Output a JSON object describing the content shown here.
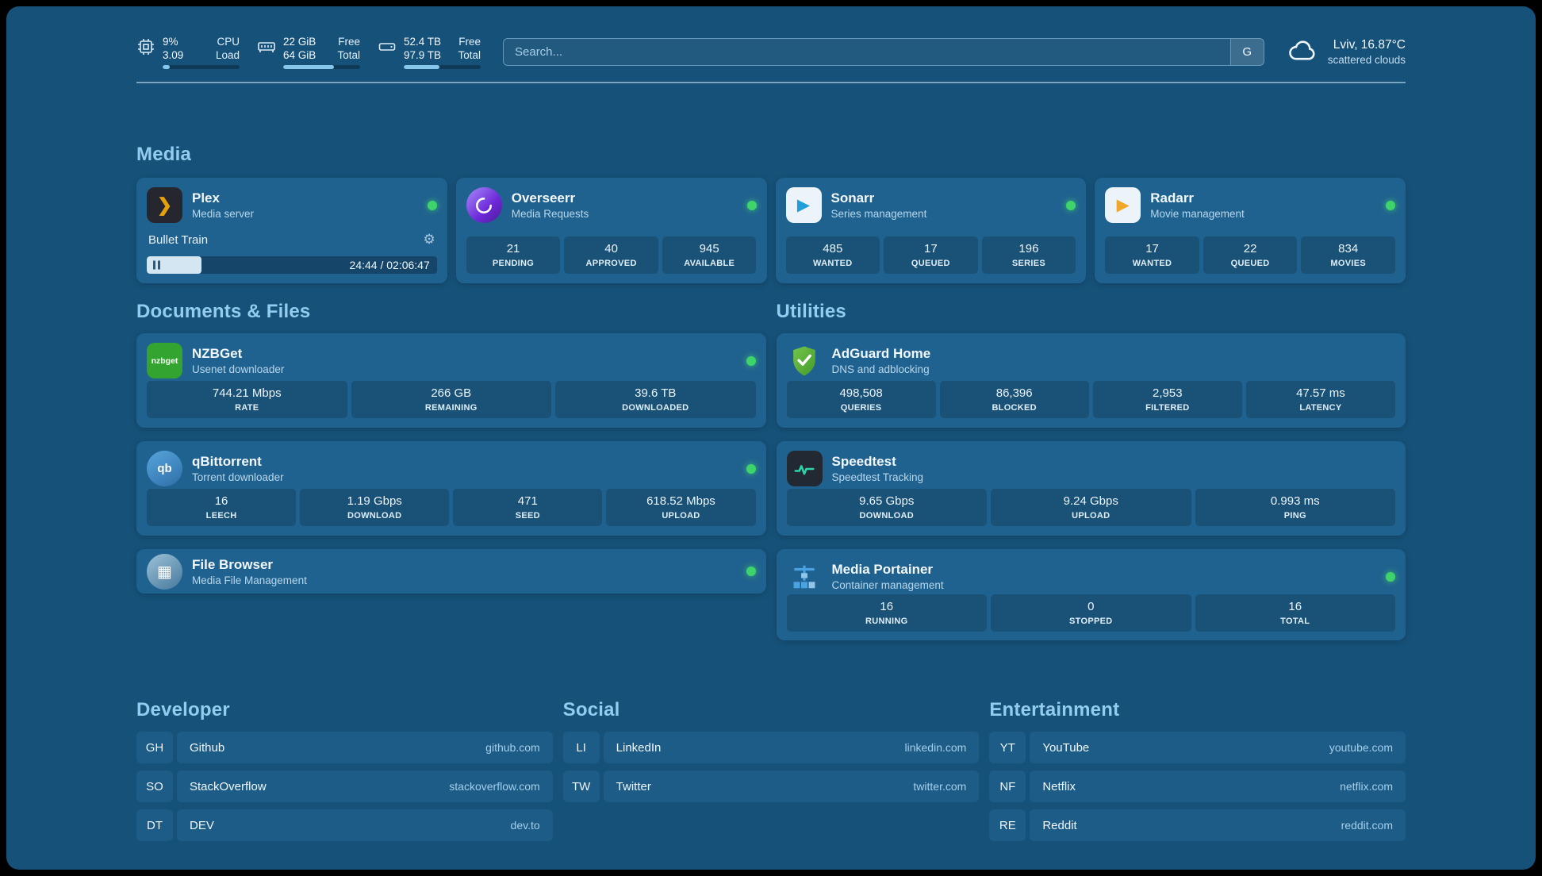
{
  "topbar": {
    "cpu": {
      "value": "9%",
      "sub": "3.09",
      "label_top": "CPU",
      "label_bottom": "Load",
      "progress": 9
    },
    "memory": {
      "value": "22 GiB",
      "sub": "64 GiB",
      "label_top": "Free",
      "label_bottom": "Total",
      "progress": 66
    },
    "disk": {
      "value": "52.4 TB",
      "sub": "97.9 TB",
      "label_top": "Free",
      "label_bottom": "Total",
      "progress": 46
    },
    "search": {
      "placeholder": "Search...",
      "engine_button": "G"
    },
    "weather": {
      "location": "Lviv, 16.87°C",
      "condition": "scattered clouds"
    }
  },
  "media": {
    "title": "Media",
    "plex": {
      "name": "Plex",
      "desc": "Media server",
      "now_playing": "Bullet Train",
      "time": "24:44 / 02:06:47",
      "progress": 19
    },
    "cards": [
      {
        "name": "Overseerr",
        "desc": "Media Requests",
        "stats": [
          {
            "value": "21",
            "label": "PENDING"
          },
          {
            "value": "40",
            "label": "APPROVED"
          },
          {
            "value": "945",
            "label": "AVAILABLE"
          }
        ]
      },
      {
        "name": "Sonarr",
        "desc": "Series management",
        "stats": [
          {
            "value": "485",
            "label": "WANTED"
          },
          {
            "value": "17",
            "label": "QUEUED"
          },
          {
            "value": "196",
            "label": "SERIES"
          }
        ]
      },
      {
        "name": "Radarr",
        "desc": "Movie management",
        "stats": [
          {
            "value": "17",
            "label": "WANTED"
          },
          {
            "value": "22",
            "label": "QUEUED"
          },
          {
            "value": "834",
            "label": "MOVIES"
          }
        ]
      }
    ]
  },
  "documents": {
    "title": "Documents & Files",
    "cards": [
      {
        "name": "NZBGet",
        "desc": "Usenet downloader",
        "icon_text": "nzbget",
        "stats": [
          {
            "value": "744.21 Mbps",
            "label": "RATE"
          },
          {
            "value": "266 GB",
            "label": "REMAINING"
          },
          {
            "value": "39.6 TB",
            "label": "DOWNLOADED"
          }
        ]
      },
      {
        "name": "qBittorrent",
        "desc": "Torrent downloader",
        "icon_text": "qb",
        "stats": [
          {
            "value": "16",
            "label": "LEECH"
          },
          {
            "value": "1.19 Gbps",
            "label": "DOWNLOAD"
          },
          {
            "value": "471",
            "label": "SEED"
          },
          {
            "value": "618.52 Mbps",
            "label": "UPLOAD"
          }
        ]
      },
      {
        "name": "File Browser",
        "desc": "Media File Management",
        "stats": []
      }
    ]
  },
  "utilities": {
    "title": "Utilities",
    "cards": [
      {
        "name": "AdGuard Home",
        "desc": "DNS and adblocking",
        "stats": [
          {
            "value": "498,508",
            "label": "QUERIES"
          },
          {
            "value": "86,396",
            "label": "BLOCKED"
          },
          {
            "value": "2,953",
            "label": "FILTERED"
          },
          {
            "value": "47.57 ms",
            "label": "LATENCY"
          }
        ]
      },
      {
        "name": "Speedtest",
        "desc": "Speedtest Tracking",
        "stats": [
          {
            "value": "9.65 Gbps",
            "label": "DOWNLOAD"
          },
          {
            "value": "9.24 Gbps",
            "label": "UPLOAD"
          },
          {
            "value": "0.993 ms",
            "label": "PING"
          }
        ]
      },
      {
        "name": "Media Portainer",
        "desc": "Container management",
        "stats": [
          {
            "value": "16",
            "label": "RUNNING"
          },
          {
            "value": "0",
            "label": "STOPPED"
          },
          {
            "value": "16",
            "label": "TOTAL"
          }
        ]
      }
    ]
  },
  "bookmarks": [
    {
      "title": "Developer",
      "items": [
        {
          "abbr": "GH",
          "name": "Github",
          "domain": "github.com"
        },
        {
          "abbr": "SO",
          "name": "StackOverflow",
          "domain": "stackoverflow.com"
        },
        {
          "abbr": "DT",
          "name": "DEV",
          "domain": "dev.to"
        }
      ]
    },
    {
      "title": "Social",
      "items": [
        {
          "abbr": "LI",
          "name": "LinkedIn",
          "domain": "linkedin.com"
        },
        {
          "abbr": "TW",
          "name": "Twitter",
          "domain": "twitter.com"
        }
      ]
    },
    {
      "title": "Entertainment",
      "items": [
        {
          "abbr": "YT",
          "name": "YouTube",
          "domain": "youtube.com"
        },
        {
          "abbr": "NF",
          "name": "Netflix",
          "domain": "netflix.com"
        },
        {
          "abbr": "RE",
          "name": "Reddit",
          "domain": "reddit.com"
        }
      ]
    }
  ]
}
